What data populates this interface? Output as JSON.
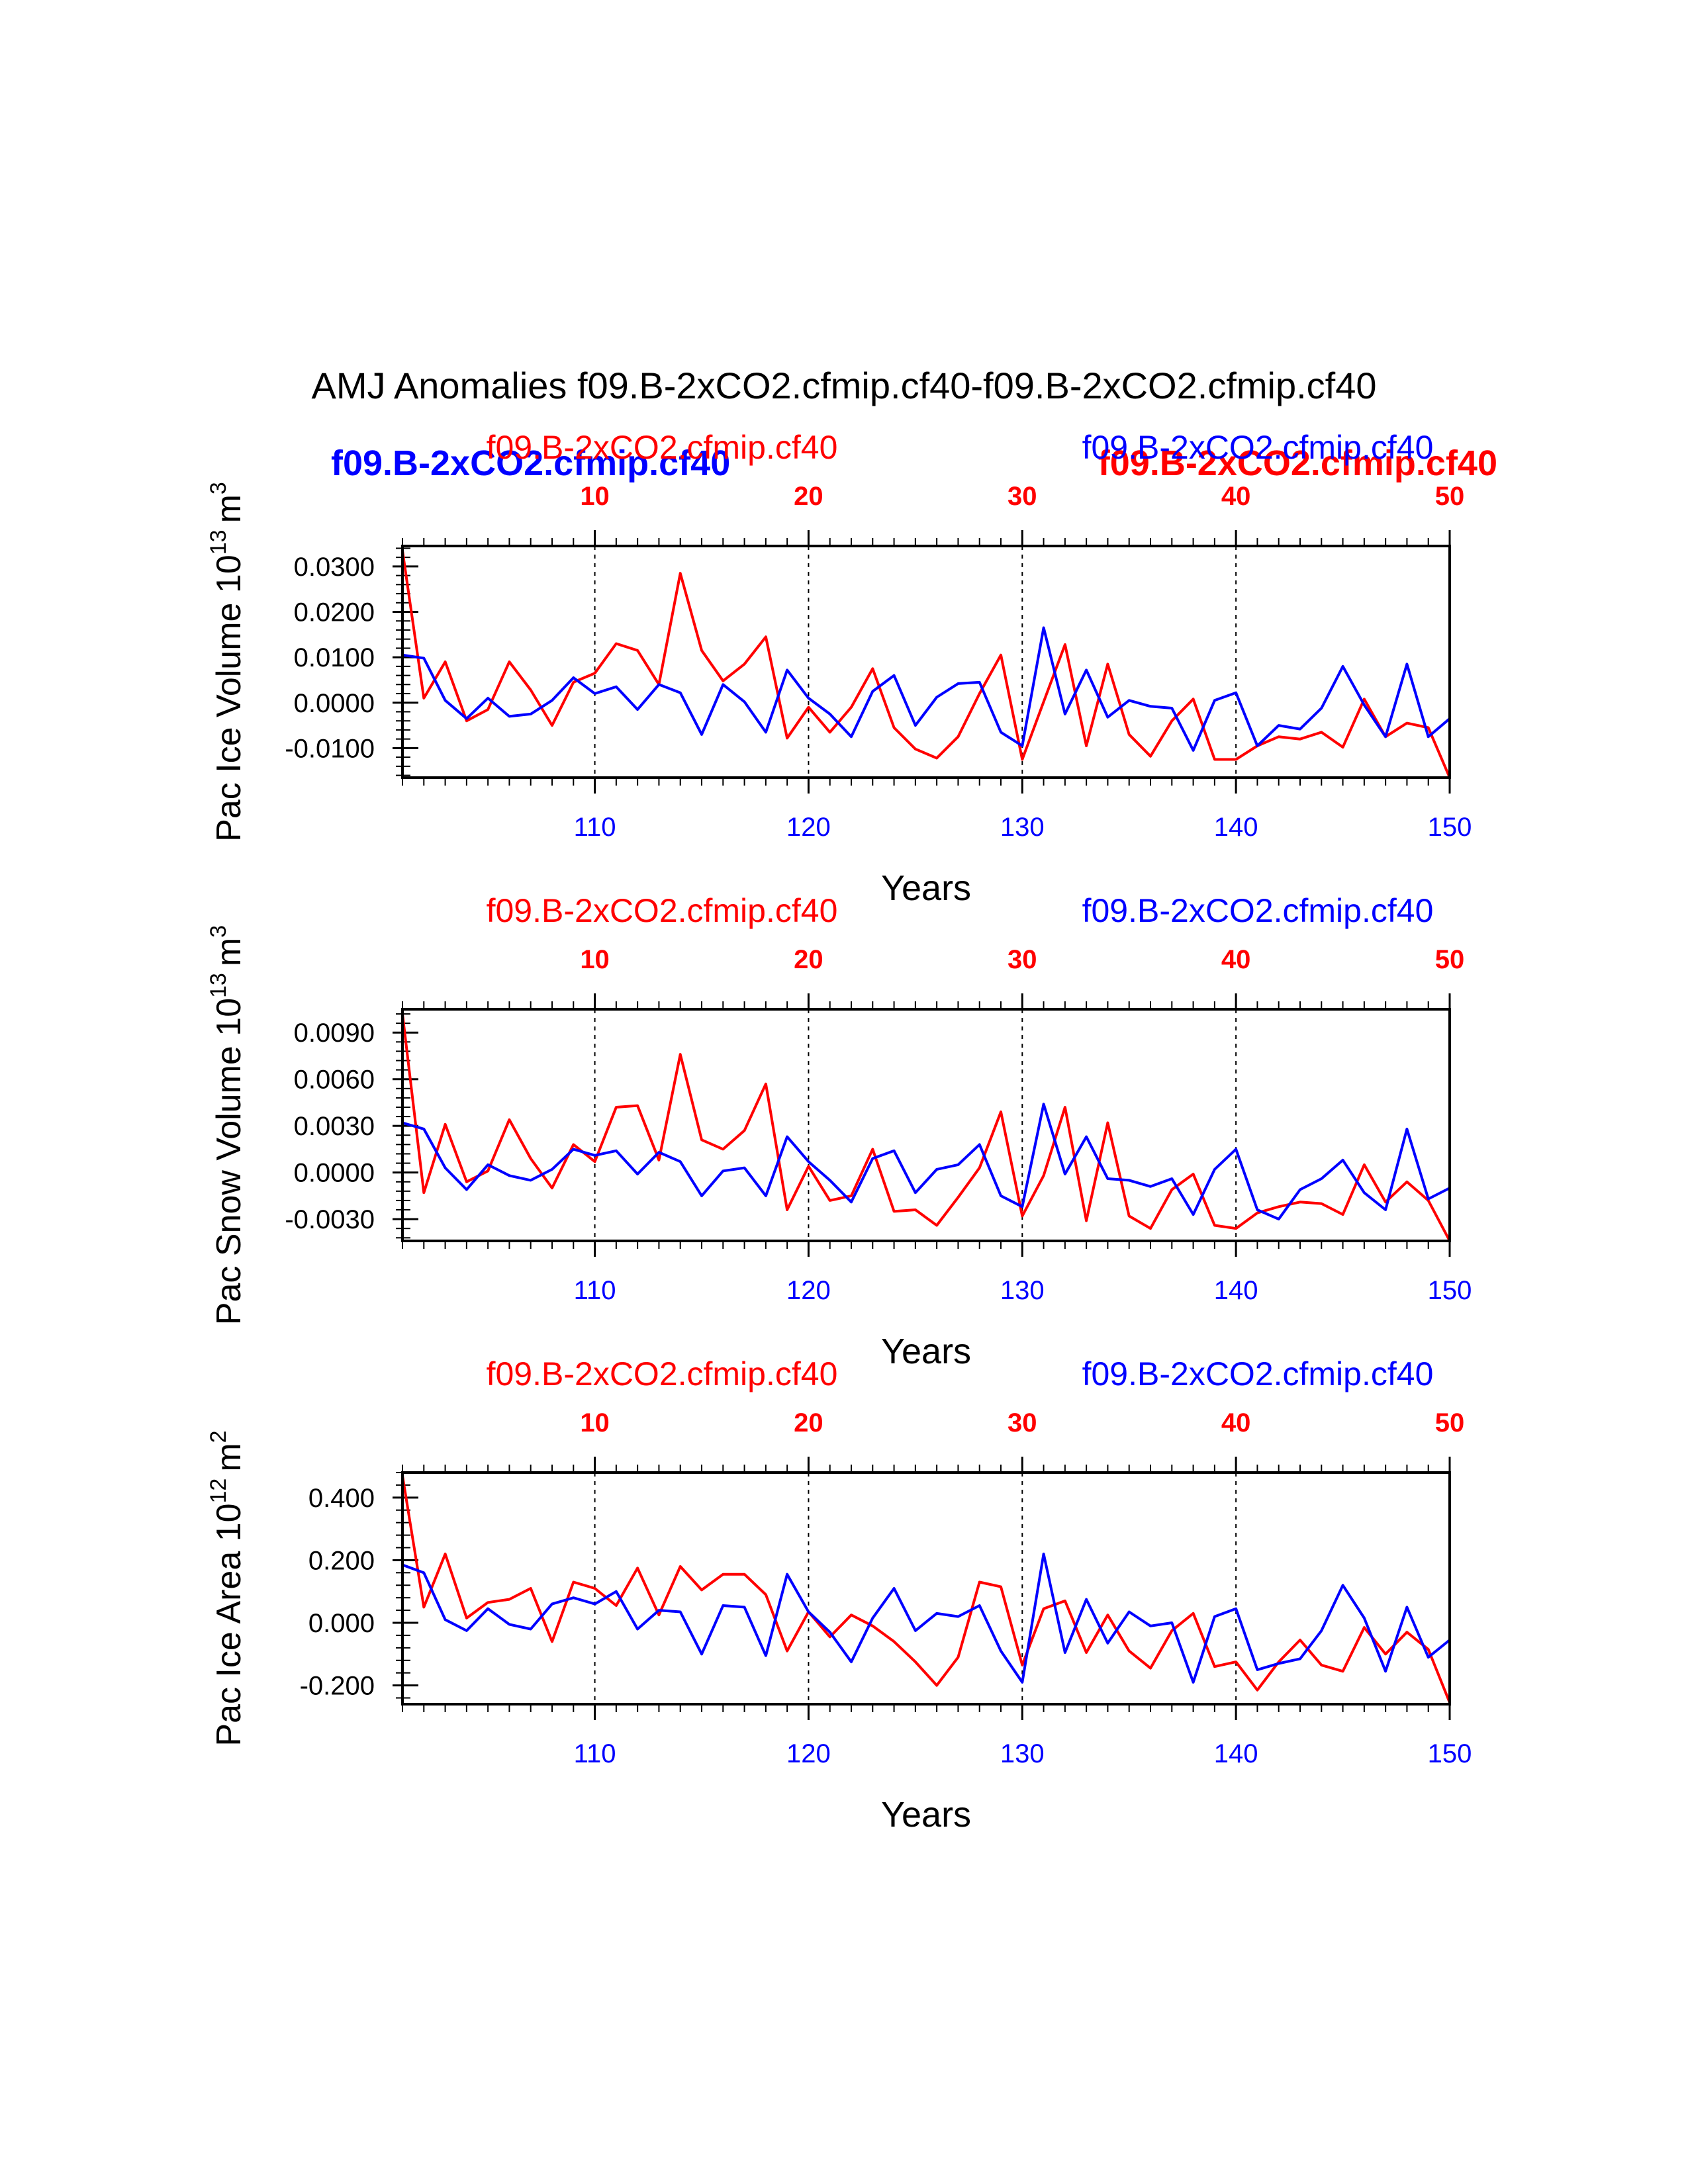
{
  "figure_title": "AMJ Anomalies f09.B-2xCO2.cfmip.cf40-f09.B-2xCO2.cfmip.cf40",
  "colors": {
    "red": "#ff0000",
    "blue": "#0000ff",
    "axis": "#000000"
  },
  "header_overlay": {
    "red_bold": "f09.B-2xCO2.cfmip.cf40",
    "blue_bold": "f09.B-2xCO2.cfmip.cf40"
  },
  "chart_data": [
    {
      "type": "line",
      "ylabel": "Pac Ice Volume 10",
      "ylabel_exp": "13",
      "ylabel_unit": "m",
      "ylabel_unit_exp": "3",
      "xlabel": "Years",
      "left_case": "f09.B-2xCO2.cfmip.cf40",
      "right_case": "f09.B-2xCO2.cfmip.cf40",
      "ylim": [
        -0.0165,
        0.0345
      ],
      "yticks": [
        -0.01,
        0.0,
        0.01,
        0.02,
        0.03
      ],
      "ytick_labels": [
        "-0.0100",
        "0.0000",
        "0.0100",
        "0.0200",
        "0.0300"
      ],
      "xlim": [
        101,
        150
      ],
      "bottom_ticks": [
        110,
        120,
        130,
        140,
        150
      ],
      "top_ticks": [
        10,
        20,
        30,
        40,
        50
      ],
      "gridlines_x": [
        110,
        120,
        130,
        140
      ],
      "series": [
        {
          "name": "blue",
          "color": "#0000ff",
          "x_start": 101,
          "values": [
            0.0105,
            0.0098,
            0.0005,
            -0.0035,
            0.001,
            -0.003,
            -0.0025,
            0.0005,
            0.0055,
            0.002,
            0.0035,
            -0.0015,
            0.004,
            0.0022,
            -0.007,
            0.004,
            0.0002,
            -0.0065,
            0.0072,
            0.001,
            -0.0025,
            -0.0075,
            0.0025,
            0.006,
            -0.005,
            0.0012,
            0.0042,
            0.0045,
            -0.0065,
            -0.0095,
            0.0165,
            -0.0025,
            0.0072,
            -0.0032,
            0.0005,
            -0.0008,
            -0.0012,
            -0.0105,
            0.0005,
            0.0022,
            -0.0095,
            -0.005,
            -0.0058,
            -0.0012,
            0.008,
            -0.0005,
            -0.0075,
            0.0085,
            -0.0075,
            -0.0035
          ]
        },
        {
          "name": "red",
          "color": "#ff0000",
          "x_start": 101,
          "values": [
            0.0335,
            0.001,
            0.009,
            -0.004,
            -0.0015,
            0.009,
            0.0028,
            -0.005,
            0.0045,
            0.0065,
            0.013,
            0.0115,
            0.004,
            0.0285,
            0.0115,
            0.0048,
            0.0085,
            0.0145,
            -0.0078,
            -0.001,
            -0.0065,
            -0.001,
            0.0075,
            -0.0055,
            -0.0102,
            -0.0122,
            -0.0075,
            0.002,
            0.0105,
            -0.0125,
            0.0002,
            0.0128,
            -0.0095,
            0.0085,
            -0.007,
            -0.0118,
            -0.004,
            0.0008,
            -0.0125,
            -0.0125,
            -0.0095,
            -0.0075,
            -0.008,
            -0.0065,
            -0.0098,
            0.0008,
            -0.0075,
            -0.0045,
            -0.0055,
            -0.0165
          ]
        }
      ]
    },
    {
      "type": "line",
      "ylabel": "Pac Snow Volume 10",
      "ylabel_exp": "13",
      "ylabel_unit": "m",
      "ylabel_unit_exp": "3",
      "xlabel": "Years",
      "left_case": "f09.B-2xCO2.cfmip.cf40",
      "right_case": "f09.B-2xCO2.cfmip.cf40",
      "ylim": [
        -0.0044,
        0.0105
      ],
      "yticks": [
        -0.003,
        0.0,
        0.003,
        0.006,
        0.009
      ],
      "ytick_labels": [
        "-0.0030",
        "0.0000",
        "0.0030",
        "0.0060",
        "0.0090"
      ],
      "xlim": [
        101,
        150
      ],
      "bottom_ticks": [
        110,
        120,
        130,
        140,
        150
      ],
      "top_ticks": [
        10,
        20,
        30,
        40,
        50
      ],
      "gridlines_x": [
        110,
        120,
        130,
        140
      ],
      "series": [
        {
          "name": "blue",
          "color": "#0000ff",
          "x_start": 101,
          "values": [
            0.0032,
            0.0028,
            0.0003,
            -0.0011,
            0.0005,
            -0.0002,
            -0.0005,
            0.0002,
            0.0015,
            0.0011,
            0.0014,
            -0.0001,
            0.0013,
            0.0007,
            -0.0015,
            0.0001,
            0.0003,
            -0.0015,
            0.0023,
            0.0007,
            -0.0005,
            -0.0019,
            0.0009,
            0.0014,
            -0.0013,
            0.0002,
            0.0005,
            0.0018,
            -0.0015,
            -0.0022,
            0.0044,
            -0.0001,
            0.0023,
            -0.0004,
            -0.0005,
            -0.0009,
            -0.0004,
            -0.0027,
            0.0002,
            0.0015,
            -0.0024,
            -0.003,
            -0.0011,
            -0.0004,
            0.0008,
            -0.0013,
            -0.0024,
            0.0028,
            -0.0017,
            -0.001
          ]
        },
        {
          "name": "red",
          "color": "#ff0000",
          "x_start": 101,
          "values": [
            0.0102,
            -0.0013,
            0.0031,
            -0.0006,
            0.0001,
            0.0034,
            0.0009,
            -0.001,
            0.0018,
            0.0007,
            0.0042,
            0.0043,
            0.0008,
            0.0076,
            0.0021,
            0.0015,
            0.0027,
            0.0057,
            -0.0024,
            0.0004,
            -0.0018,
            -0.0015,
            0.0015,
            -0.0025,
            -0.0024,
            -0.0034,
            -0.0016,
            0.0003,
            0.0039,
            -0.0028,
            -0.0002,
            0.0042,
            -0.0031,
            0.0032,
            -0.0028,
            -0.0036,
            -0.0011,
            -0.0001,
            -0.0034,
            -0.0036,
            -0.0026,
            -0.0022,
            -0.0019,
            -0.002,
            -0.0027,
            0.0005,
            -0.0019,
            -0.0006,
            -0.0018,
            -0.0044
          ]
        }
      ]
    },
    {
      "type": "line",
      "ylabel": "Pac Ice Area 10",
      "ylabel_exp": "12",
      "ylabel_unit": "m",
      "ylabel_unit_exp": "2",
      "xlabel": "Years",
      "left_case": "f09.B-2xCO2.cfmip.cf40",
      "right_case": "f09.B-2xCO2.cfmip.cf40",
      "ylim": [
        -0.26,
        0.48
      ],
      "yticks": [
        -0.2,
        0.0,
        0.2,
        0.4
      ],
      "ytick_labels": [
        "-0.200",
        "0.000",
        "0.200",
        "0.400"
      ],
      "xlim": [
        101,
        150
      ],
      "bottom_ticks": [
        110,
        120,
        130,
        140,
        150
      ],
      "top_ticks": [
        10,
        20,
        30,
        40,
        50
      ],
      "gridlines_x": [
        110,
        120,
        130,
        140
      ],
      "series": [
        {
          "name": "blue",
          "color": "#0000ff",
          "x_start": 101,
          "values": [
            0.185,
            0.16,
            0.01,
            -0.025,
            0.045,
            -0.005,
            -0.02,
            0.06,
            0.08,
            0.06,
            0.1,
            -0.02,
            0.04,
            0.035,
            -0.1,
            0.055,
            0.05,
            -0.105,
            0.155,
            0.035,
            -0.03,
            -0.125,
            0.015,
            0.11,
            -0.025,
            0.03,
            0.02,
            0.055,
            -0.09,
            -0.19,
            0.22,
            -0.095,
            0.075,
            -0.065,
            0.035,
            -0.01,
            0.0,
            -0.19,
            0.02,
            0.045,
            -0.15,
            -0.13,
            -0.115,
            -0.025,
            0.12,
            0.015,
            -0.155,
            0.05,
            -0.11,
            -0.055
          ]
        },
        {
          "name": "red",
          "color": "#ff0000",
          "x_start": 101,
          "values": [
            0.47,
            0.05,
            0.22,
            0.015,
            0.065,
            0.075,
            0.11,
            -0.06,
            0.13,
            0.11,
            0.055,
            0.175,
            0.025,
            0.18,
            0.105,
            0.155,
            0.155,
            0.09,
            -0.09,
            0.035,
            -0.045,
            0.025,
            -0.01,
            -0.06,
            -0.125,
            -0.2,
            -0.11,
            0.13,
            0.115,
            -0.135,
            0.045,
            0.07,
            -0.095,
            0.025,
            -0.09,
            -0.145,
            -0.025,
            0.03,
            -0.14,
            -0.125,
            -0.215,
            -0.125,
            -0.055,
            -0.135,
            -0.155,
            -0.015,
            -0.1,
            -0.03,
            -0.085,
            -0.255
          ]
        }
      ]
    }
  ]
}
